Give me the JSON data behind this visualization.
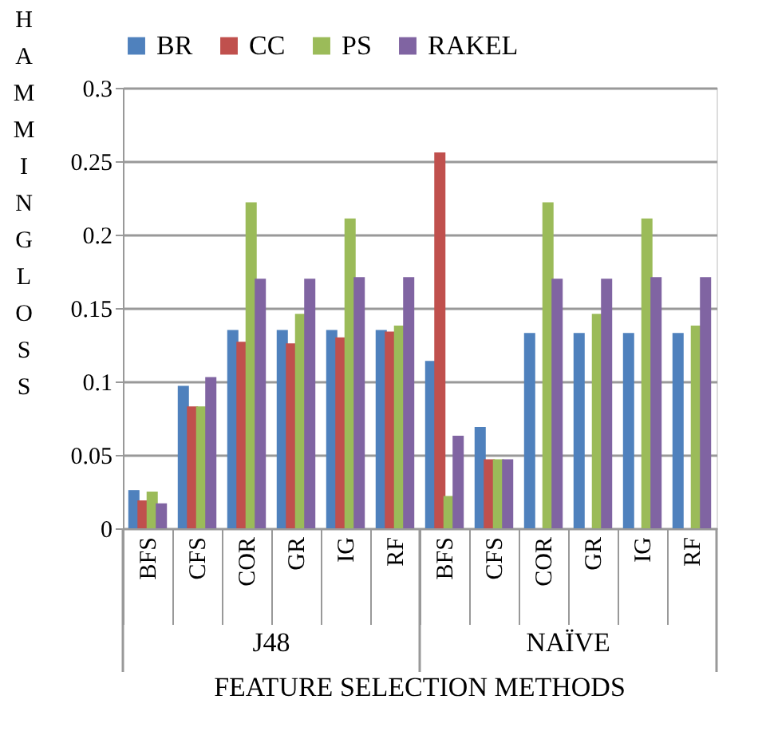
{
  "chart_data": {
    "type": "bar",
    "xlabel": "FEATURE SELECTION METHODS",
    "ylabel": "HAMMING LOSS",
    "categories": [
      "BFS",
      "CFS",
      "COR",
      "GR",
      "IG",
      "RF",
      "BFS",
      "CFS",
      "COR",
      "GR",
      "IG",
      "RF"
    ],
    "series": [
      {
        "name": "BR",
        "color": "#4f81bd",
        "values": [
          0.026,
          0.097,
          0.135,
          0.135,
          0.135,
          0.135,
          0.114,
          0.069,
          0.133,
          0.133,
          0.133,
          0.133
        ]
      },
      {
        "name": "CC",
        "color": "#c0504d",
        "values": [
          0.019,
          0.083,
          0.127,
          0.126,
          0.13,
          0.134,
          0.256,
          0.047,
          null,
          null,
          null,
          null
        ]
      },
      {
        "name": "PS",
        "color": "#9bbb59",
        "values": [
          0.025,
          0.083,
          0.222,
          0.146,
          0.211,
          0.138,
          0.022,
          0.047,
          0.222,
          0.146,
          0.211,
          0.138
        ]
      },
      {
        "name": "RAKEL",
        "color": "#8064a2",
        "values": [
          0.017,
          0.103,
          0.17,
          0.17,
          0.171,
          0.171,
          0.063,
          0.047,
          0.17,
          0.17,
          0.171,
          0.171
        ]
      }
    ],
    "annotations": [
      "J48",
      "NAÏVE"
    ],
    "ylim": [
      0,
      0.3
    ],
    "yticks": [
      0,
      0.05,
      0.1,
      0.15,
      0.2,
      0.25,
      0.3
    ],
    "grid": "y",
    "legend": "top"
  }
}
